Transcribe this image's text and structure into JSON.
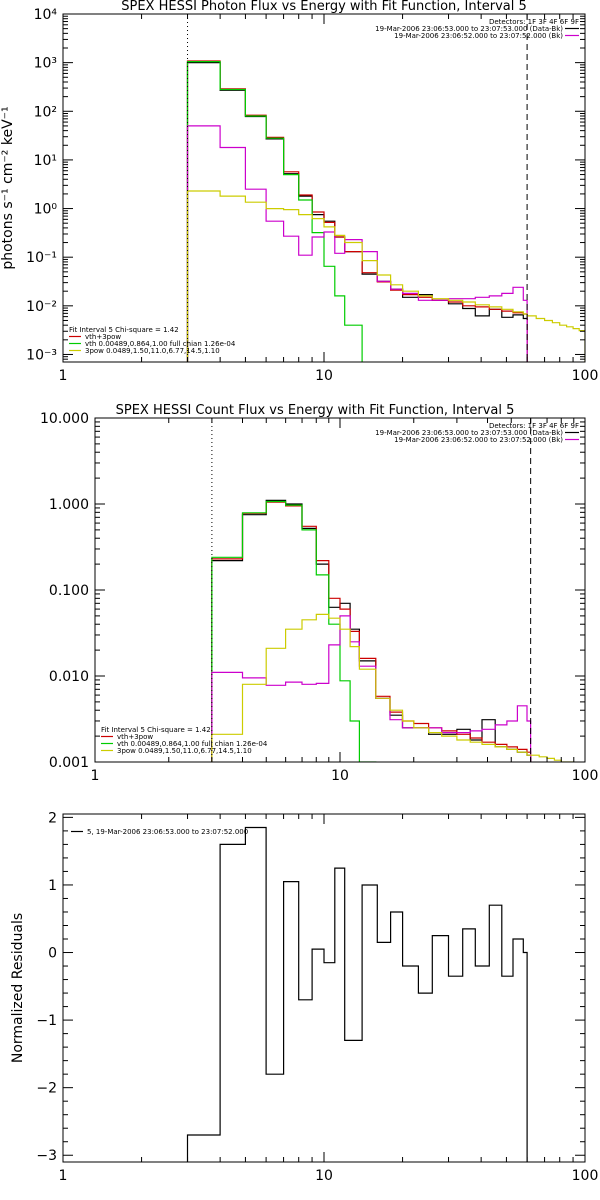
{
  "chart_data": [
    {
      "type": "line",
      "title": "SPEX HESSI Photon Flux vs Energy with Fit Function, Interval 5",
      "ylabel": "photons s⁻¹ cm⁻² keV⁻¹",
      "xlabel": "",
      "xscale": "log",
      "yscale": "log",
      "xlim": [
        1,
        100
      ],
      "ylim": [
        0.0007,
        10000
      ],
      "xticks": [
        {
          "v": 1,
          "label": "1"
        },
        {
          "v": 10,
          "label": "10"
        },
        {
          "v": 100,
          "label": "100"
        }
      ],
      "yticks": [
        {
          "v": 0.001,
          "label": "10⁻³"
        },
        {
          "v": 0.01,
          "label": "10⁻²"
        },
        {
          "v": 0.1,
          "label": "10⁻¹"
        },
        {
          "v": 1,
          "label": "10⁰"
        },
        {
          "v": 10,
          "label": "10¹"
        },
        {
          "v": 100,
          "label": "10²"
        },
        {
          "v": 1000,
          "label": "10³"
        },
        {
          "v": 10000,
          "label": "10⁴"
        }
      ],
      "vlines": [
        {
          "x": 3.0,
          "style": "dotted"
        },
        {
          "x": 60,
          "style": "dashed"
        }
      ],
      "header_lines": [
        {
          "text": "Detectors: 1F 3F 4F 6F 9F",
          "color": "#000000",
          "marker": false
        },
        {
          "text": "19-Mar-2006 23:06:53.000 to 23:07:53.000 (Data-Bk)",
          "color": "#000000",
          "marker": true
        },
        {
          "text": "19-Mar-2006 23:06:52.000 to 23:07:52.000 (Bk)",
          "color": "#cc00cc",
          "marker": true
        }
      ],
      "legend": [
        {
          "text": "Fit Interval 5   Chi-square = 1.42",
          "color": "#000000"
        },
        {
          "text": "vth+3pow",
          "color": "#cc0000"
        },
        {
          "text": "vth 0.00489,0.864,1.00   full chian 1.26e-04",
          "color": "#00cc00"
        },
        {
          "text": "3pow 0.0489,1.50,11.0,6.77,14.5,1.10",
          "color": "#cccc00"
        }
      ],
      "series": [
        {
          "color": "#000000",
          "edges": [
            3,
            4,
            5,
            6,
            7,
            8,
            9,
            10,
            11,
            12,
            14,
            16,
            18,
            20,
            23,
            26,
            30,
            34,
            38,
            43,
            48,
            53,
            58,
            60
          ],
          "values": [
            1000,
            270,
            78,
            27,
            5.2,
            1.8,
            0.75,
            0.55,
            0.26,
            0.13,
            0.045,
            0.032,
            0.022,
            0.015,
            0.017,
            0.013,
            0.011,
            0.0088,
            0.0062,
            0.0085,
            0.0058,
            0.0065,
            0.0055
          ]
        },
        {
          "color": "#cc0000",
          "edges": [
            3,
            4,
            5,
            6,
            7,
            8,
            9,
            10,
            11,
            12,
            14,
            16,
            18,
            20,
            23,
            26,
            30,
            34,
            38,
            43,
            48,
            53,
            58,
            60
          ],
          "values": [
            1080,
            290,
            83,
            29,
            5.7,
            1.9,
            0.85,
            0.52,
            0.26,
            0.13,
            0.048,
            0.031,
            0.021,
            0.017,
            0.015,
            0.013,
            0.012,
            0.01,
            0.0095,
            0.0085,
            0.0078,
            0.0072,
            0.0068
          ]
        },
        {
          "color": "#00cc00",
          "edges": [
            3,
            4,
            5,
            6,
            7,
            8,
            9,
            10,
            11,
            12,
            14
          ],
          "values": [
            1050,
            280,
            80,
            28,
            5.0,
            1.5,
            0.32,
            0.065,
            0.016,
            0.004
          ]
        },
        {
          "color": "#cc00cc",
          "edges": [
            3,
            4,
            5,
            6,
            7,
            8,
            9,
            10,
            11,
            12,
            14,
            16,
            18,
            20,
            23,
            26,
            30,
            34,
            38,
            43,
            48,
            53,
            58,
            60
          ],
          "values": [
            50,
            18,
            2.5,
            0.55,
            0.27,
            0.11,
            0.26,
            0.33,
            0.12,
            0.23,
            0.13,
            0.032,
            0.022,
            0.018,
            0.013,
            0.013,
            0.014,
            0.014,
            0.015,
            0.016,
            0.018,
            0.024,
            0.013
          ]
        },
        {
          "color": "#cccc00",
          "edges": [
            3,
            4,
            5,
            6,
            7,
            8,
            9,
            10,
            11,
            12,
            14,
            16,
            18,
            20,
            23,
            26,
            30,
            34,
            38,
            43,
            48,
            53,
            58,
            60,
            65,
            70,
            75,
            80,
            85,
            90,
            95,
            100
          ],
          "values": [
            2.3,
            1.8,
            1.35,
            1.0,
            0.95,
            0.75,
            0.62,
            0.42,
            0.28,
            0.2,
            0.085,
            0.043,
            0.027,
            0.02,
            0.016,
            0.014,
            0.013,
            0.012,
            0.0105,
            0.0095,
            0.0085,
            0.0075,
            0.0068,
            0.0062,
            0.0055,
            0.005,
            0.0045,
            0.004,
            0.0037,
            0.0034,
            0.0031
          ]
        }
      ]
    },
    {
      "type": "line",
      "title": "SPEX HESSI Count Flux vs Energy with Fit Function, Interval 5",
      "ylabel": "",
      "xlabel": "",
      "xscale": "log",
      "yscale": "log",
      "xlim": [
        1,
        100
      ],
      "ylim": [
        0.001,
        10
      ],
      "xticks": [
        {
          "v": 1,
          "label": "1"
        },
        {
          "v": 10,
          "label": "10"
        },
        {
          "v": 100,
          "label": "100"
        }
      ],
      "yticks": [
        {
          "v": 0.001,
          "label": "0.001"
        },
        {
          "v": 0.01,
          "label": "0.010"
        },
        {
          "v": 0.1,
          "label": "0.100"
        },
        {
          "v": 1,
          "label": "1.000"
        },
        {
          "v": 10,
          "label": "10.000"
        }
      ],
      "vlines": [
        {
          "x": 3.0,
          "style": "dotted"
        },
        {
          "x": 60,
          "style": "dashed"
        }
      ],
      "header_lines": [
        {
          "text": "Detectors: 1F 3F 4F 6F 9F",
          "color": "#000000",
          "marker": false
        },
        {
          "text": "19-Mar-2006 23:06:53.000 to 23:07:53.000 (Data-Bk)",
          "color": "#000000",
          "marker": true
        },
        {
          "text": "19-Mar-2006 23:06:52.000 to 23:07:52.000 (Bk)",
          "color": "#cc00cc",
          "marker": true
        }
      ],
      "legend": [
        {
          "text": "Fit Interval 5   Chi-square = 1.42",
          "color": "#000000"
        },
        {
          "text": "vth+3pow",
          "color": "#cc0000"
        },
        {
          "text": "vth 0.00489,0.864,1.00   full chian 1.26e-04",
          "color": "#00cc00"
        },
        {
          "text": "3pow 0.0489,1.50,11.0,6.77,14.5,1.10",
          "color": "#cccc00"
        }
      ],
      "series": [
        {
          "color": "#000000",
          "edges": [
            3,
            4,
            5,
            6,
            7,
            8,
            9,
            10,
            11,
            12,
            14,
            16,
            18,
            20,
            23,
            26,
            30,
            34,
            38,
            43,
            48,
            53,
            58,
            60
          ],
          "values": [
            0.22,
            0.75,
            1.1,
            1.0,
            0.52,
            0.2,
            0.063,
            0.07,
            0.035,
            0.015,
            0.0055,
            0.0035,
            0.0025,
            0.0025,
            0.0021,
            0.0021,
            0.0024,
            0.0018,
            0.0031,
            0.0015,
            0.0014,
            0.0013,
            0.0012
          ]
        },
        {
          "color": "#cc0000",
          "edges": [
            3,
            4,
            5,
            6,
            7,
            8,
            9,
            10,
            11,
            12,
            14,
            16,
            18,
            20,
            23,
            26,
            30,
            34,
            38,
            43,
            48,
            53,
            58,
            60
          ],
          "values": [
            0.23,
            0.78,
            1.05,
            0.95,
            0.55,
            0.22,
            0.08,
            0.06,
            0.033,
            0.016,
            0.0058,
            0.0038,
            0.003,
            0.0028,
            0.0025,
            0.0023,
            0.0021,
            0.0019,
            0.0017,
            0.0016,
            0.0015,
            0.0014,
            0.0013
          ]
        },
        {
          "color": "#00cc00",
          "edges": [
            3,
            4,
            5,
            6,
            7,
            8,
            9,
            10,
            11,
            12,
            14
          ],
          "values": [
            0.24,
            0.79,
            1.07,
            0.97,
            0.5,
            0.15,
            0.04,
            0.0088,
            0.003,
            0.001
          ]
        },
        {
          "color": "#cc00cc",
          "edges": [
            3,
            4,
            5,
            6,
            7,
            8,
            9,
            10,
            11,
            12,
            14,
            16,
            18,
            20,
            23,
            26,
            30,
            34,
            38,
            43,
            48,
            53,
            58,
            60
          ],
          "values": [
            0.011,
            0.0095,
            0.0078,
            0.0085,
            0.008,
            0.0082,
            0.023,
            0.05,
            0.025,
            0.013,
            0.0055,
            0.0031,
            0.0025,
            0.0025,
            0.0025,
            0.0022,
            0.0022,
            0.0023,
            0.0024,
            0.0027,
            0.003,
            0.0045,
            0.003
          ]
        },
        {
          "color": "#cccc00",
          "edges": [
            3,
            4,
            5,
            6,
            7,
            8,
            9,
            10,
            11,
            12,
            14,
            16,
            18,
            20,
            23,
            26,
            30,
            34,
            38,
            43,
            48,
            53,
            58,
            60,
            65,
            70,
            75,
            80,
            85,
            90
          ],
          "values": [
            0.0021,
            0.008,
            0.021,
            0.035,
            0.045,
            0.052,
            0.047,
            0.035,
            0.022,
            0.012,
            0.0055,
            0.004,
            0.003,
            0.0025,
            0.0022,
            0.002,
            0.0018,
            0.0017,
            0.0016,
            0.0015,
            0.0014,
            0.0013,
            0.0012,
            0.0012,
            0.00115,
            0.0011,
            0.00105,
            0.001,
            0.00095
          ]
        }
      ]
    },
    {
      "type": "line",
      "title": "",
      "ylabel": "Normalized Residuals",
      "xlabel": "",
      "xscale": "log",
      "yscale": "linear",
      "xlim": [
        1,
        100
      ],
      "ylim": [
        -3.1,
        2.05
      ],
      "xticks": [
        {
          "v": 1,
          "label": "1"
        },
        {
          "v": 10,
          "label": "10"
        },
        {
          "v": 100,
          "label": "100"
        }
      ],
      "yticks": [
        {
          "v": -3,
          "label": "−3"
        },
        {
          "v": -2,
          "label": "−2"
        },
        {
          "v": -1,
          "label": "−1"
        },
        {
          "v": 0,
          "label": "0"
        },
        {
          "v": 1,
          "label": "1"
        },
        {
          "v": 2,
          "label": "2"
        }
      ],
      "vlines": [],
      "header_lines": [],
      "legend": [
        {
          "text": "5, 19-Mar-2006 23:06:53.000 to 23:07:52.000",
          "color": "#000000"
        }
      ],
      "series": [
        {
          "color": "#000000",
          "edges": [
            3,
            4,
            5,
            6,
            7,
            8,
            9,
            10,
            11,
            12,
            14,
            16,
            18,
            20,
            23,
            26,
            30,
            34,
            38,
            43,
            48,
            53,
            58,
            60
          ],
          "values": [
            -2.7,
            1.6,
            1.85,
            -1.8,
            1.05,
            -0.7,
            0.05,
            -0.15,
            1.25,
            -1.3,
            1.0,
            0.15,
            0.6,
            -0.2,
            -0.6,
            0.25,
            -0.35,
            0.35,
            -0.2,
            0.7,
            -0.35,
            0.2,
            0.0
          ]
        }
      ]
    }
  ]
}
